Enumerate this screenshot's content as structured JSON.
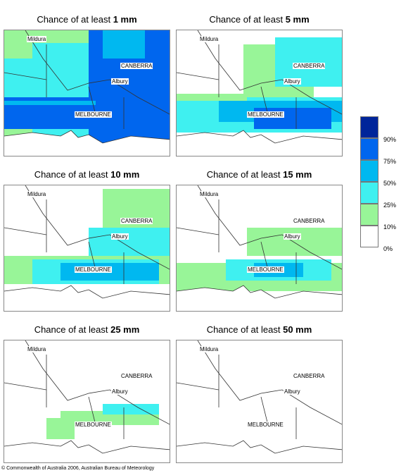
{
  "panels": [
    {
      "prefix": "Chance of at least ",
      "amount": "1 mm",
      "level": 1
    },
    {
      "prefix": "Chance of at least ",
      "amount": "5 mm",
      "level": 2
    },
    {
      "prefix": "Chance of at least ",
      "amount": "10 mm",
      "level": 3
    },
    {
      "prefix": "Chance of at least ",
      "amount": "15 mm",
      "level": 4
    },
    {
      "prefix": "Chance of at least ",
      "amount": "25 mm",
      "level": 5
    },
    {
      "prefix": "Chance of at least ",
      "amount": "50 mm",
      "level": 6
    }
  ],
  "places": {
    "mildura": "Mildura",
    "canberra": "CANBERRA",
    "albury": "Albury",
    "melbourne": "MELBOURNE"
  },
  "legend": {
    "labels": [
      "90%",
      "75%",
      "50%",
      "25%",
      "10%",
      "0%"
    ],
    "colors": [
      "#00259a",
      "#0066ee",
      "#00b8f0",
      "#3ff0f0",
      "#98f598",
      "#ffffff"
    ]
  },
  "copyright": "© Commonwealth of Australia 2006, Australian Bureau of Meteorology"
}
